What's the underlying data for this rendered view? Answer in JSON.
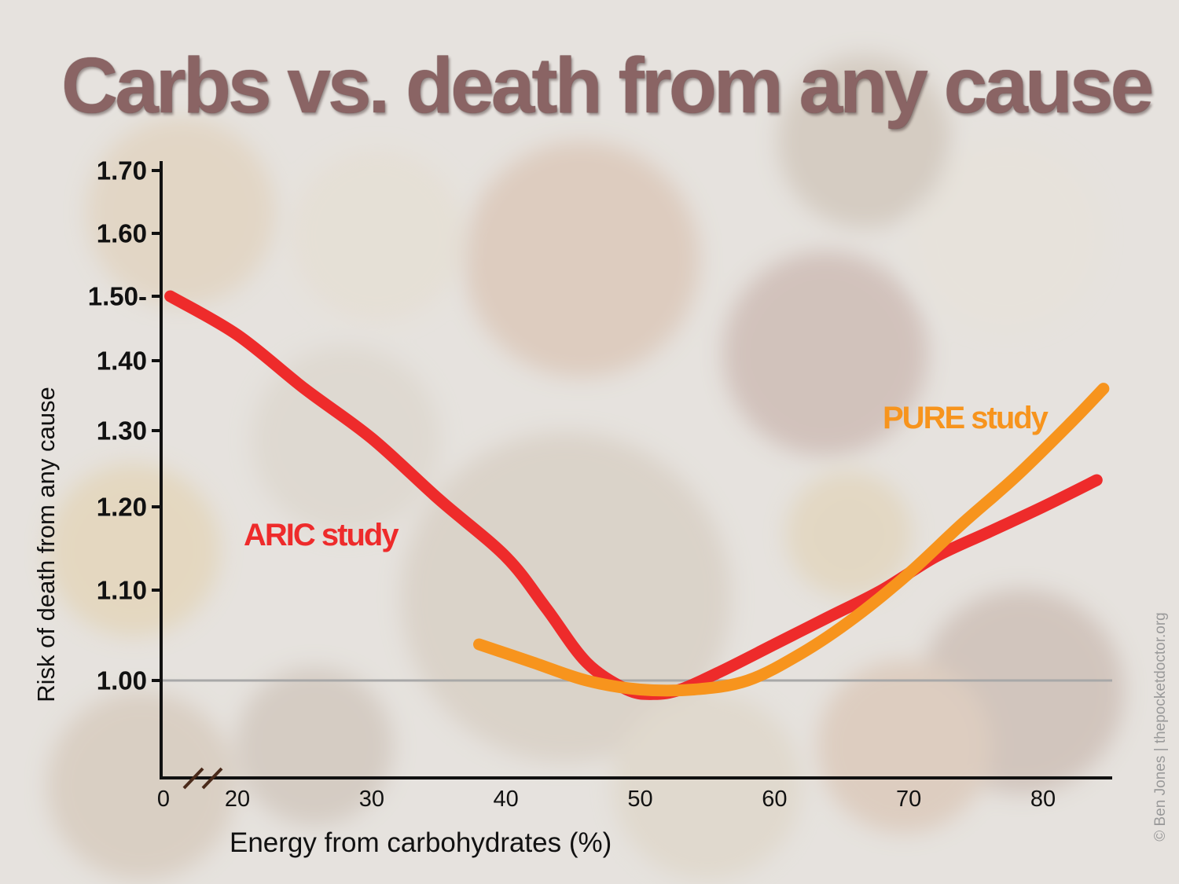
{
  "chart_data": {
    "type": "line",
    "title": "Carbs vs. death from any cause",
    "xlabel": "Energy from carbohydrates (%)",
    "ylabel": "Risk of death from any cause",
    "x_tick_labels": [
      "0",
      "20",
      "30",
      "40",
      "50",
      "60",
      "70",
      "80"
    ],
    "x_tick_values": [
      0,
      20,
      30,
      40,
      50,
      60,
      70,
      80
    ],
    "y_tick_labels": [
      "1.70",
      "1.60",
      "1.50-",
      "1.40",
      "1.30",
      "1.20",
      "1.10",
      "1.00"
    ],
    "y_tick_values": [
      1.7,
      1.6,
      1.5,
      1.4,
      1.3,
      1.2,
      1.1,
      1.0
    ],
    "xlim": [
      0,
      85
    ],
    "ylim": [
      0.88,
      1.71
    ],
    "reference_line": 1.0,
    "axis_break": "x",
    "series": [
      {
        "name": "ARIC study",
        "color": "#ee2b2b",
        "x": [
          15,
          20,
          25,
          30,
          35,
          40,
          43,
          46,
          49,
          51,
          53,
          56,
          60,
          64,
          68,
          72,
          76,
          80,
          84
        ],
        "y": [
          1.5,
          1.44,
          1.36,
          1.29,
          1.21,
          1.14,
          1.08,
          1.02,
          0.99,
          0.985,
          0.99,
          1.01,
          1.04,
          1.07,
          1.1,
          1.14,
          1.17,
          1.2,
          1.235
        ]
      },
      {
        "name": "PURE study",
        "color": "#f7941d",
        "x": [
          38,
          42,
          46,
          50,
          54,
          58,
          62,
          66,
          70,
          74,
          78,
          82,
          84.5
        ],
        "y": [
          1.04,
          1.02,
          1.0,
          0.99,
          0.99,
          1.0,
          1.03,
          1.07,
          1.12,
          1.18,
          1.24,
          1.31,
          1.36
        ]
      }
    ]
  },
  "credit": "© Ben Jones | thepocketdoctor.org"
}
